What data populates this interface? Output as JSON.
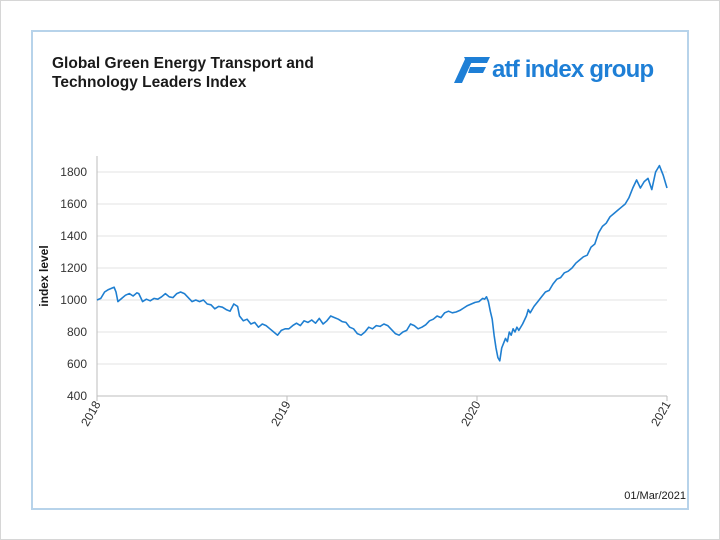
{
  "header": {
    "title_line1": "Global Green Energy Transport and",
    "title_line2": "Technology Leaders Index",
    "logo_text": "atf index group",
    "logo_icon": "atf-logo-icon"
  },
  "footer": {
    "date": "01/Mar/2021"
  },
  "colors": {
    "line": "#1f7fd1",
    "frame": "#b7d3ea",
    "logo": "#1e7fd6"
  },
  "chart_data": {
    "type": "line",
    "title": "Global Green Energy Transport and Technology Leaders Index",
    "xlabel": "",
    "ylabel": "index level",
    "ylim": [
      400,
      1900
    ],
    "xlim": [
      2018.0,
      2021.0
    ],
    "yticks": [
      400,
      600,
      800,
      1000,
      1200,
      1400,
      1600,
      1800
    ],
    "xticks": [
      {
        "value": 2018,
        "label": "2018"
      },
      {
        "value": 2019,
        "label": "2019"
      },
      {
        "value": 2020,
        "label": "2020"
      },
      {
        "value": 2021,
        "label": "2021"
      }
    ],
    "grid": "horizontal",
    "series": [
      {
        "values": [
          [
            2018.0,
            1000
          ],
          [
            2018.02,
            1010
          ],
          [
            2018.04,
            1050
          ],
          [
            2018.06,
            1065
          ],
          [
            2018.08,
            1075
          ],
          [
            2018.09,
            1080
          ],
          [
            2018.1,
            1050
          ],
          [
            2018.11,
            990
          ],
          [
            2018.13,
            1010
          ],
          [
            2018.15,
            1030
          ],
          [
            2018.17,
            1040
          ],
          [
            2018.19,
            1025
          ],
          [
            2018.21,
            1045
          ],
          [
            2018.22,
            1040
          ],
          [
            2018.24,
            990
          ],
          [
            2018.26,
            1005
          ],
          [
            2018.28,
            995
          ],
          [
            2018.3,
            1010
          ],
          [
            2018.32,
            1005
          ],
          [
            2018.34,
            1020
          ],
          [
            2018.36,
            1040
          ],
          [
            2018.38,
            1020
          ],
          [
            2018.4,
            1015
          ],
          [
            2018.42,
            1040
          ],
          [
            2018.44,
            1050
          ],
          [
            2018.46,
            1040
          ],
          [
            2018.48,
            1015
          ],
          [
            2018.5,
            990
          ],
          [
            2018.52,
            1000
          ],
          [
            2018.54,
            990
          ],
          [
            2018.56,
            1000
          ],
          [
            2018.58,
            975
          ],
          [
            2018.6,
            970
          ],
          [
            2018.62,
            945
          ],
          [
            2018.64,
            960
          ],
          [
            2018.66,
            955
          ],
          [
            2018.68,
            940
          ],
          [
            2018.7,
            930
          ],
          [
            2018.72,
            975
          ],
          [
            2018.74,
            960
          ],
          [
            2018.75,
            900
          ],
          [
            2018.77,
            870
          ],
          [
            2018.79,
            880
          ],
          [
            2018.81,
            850
          ],
          [
            2018.83,
            860
          ],
          [
            2018.85,
            830
          ],
          [
            2018.87,
            850
          ],
          [
            2018.89,
            840
          ],
          [
            2018.91,
            820
          ],
          [
            2018.93,
            800
          ],
          [
            2018.95,
            780
          ],
          [
            2018.97,
            810
          ],
          [
            2018.99,
            820
          ],
          [
            2019.01,
            820
          ],
          [
            2019.03,
            840
          ],
          [
            2019.05,
            855
          ],
          [
            2019.07,
            840
          ],
          [
            2019.09,
            870
          ],
          [
            2019.11,
            860
          ],
          [
            2019.13,
            875
          ],
          [
            2019.15,
            855
          ],
          [
            2019.17,
            885
          ],
          [
            2019.19,
            850
          ],
          [
            2019.21,
            870
          ],
          [
            2019.23,
            900
          ],
          [
            2019.25,
            890
          ],
          [
            2019.27,
            880
          ],
          [
            2019.29,
            865
          ],
          [
            2019.31,
            860
          ],
          [
            2019.33,
            830
          ],
          [
            2019.35,
            820
          ],
          [
            2019.37,
            790
          ],
          [
            2019.39,
            780
          ],
          [
            2019.41,
            800
          ],
          [
            2019.43,
            830
          ],
          [
            2019.45,
            820
          ],
          [
            2019.47,
            840
          ],
          [
            2019.49,
            835
          ],
          [
            2019.51,
            850
          ],
          [
            2019.53,
            840
          ],
          [
            2019.55,
            815
          ],
          [
            2019.57,
            790
          ],
          [
            2019.59,
            780
          ],
          [
            2019.61,
            800
          ],
          [
            2019.63,
            810
          ],
          [
            2019.65,
            850
          ],
          [
            2019.67,
            840
          ],
          [
            2019.69,
            820
          ],
          [
            2019.71,
            830
          ],
          [
            2019.73,
            845
          ],
          [
            2019.75,
            870
          ],
          [
            2019.77,
            880
          ],
          [
            2019.79,
            900
          ],
          [
            2019.81,
            890
          ],
          [
            2019.83,
            920
          ],
          [
            2019.85,
            930
          ],
          [
            2019.87,
            920
          ],
          [
            2019.89,
            925
          ],
          [
            2019.91,
            935
          ],
          [
            2019.93,
            950
          ],
          [
            2019.95,
            965
          ],
          [
            2019.97,
            975
          ],
          [
            2019.99,
            985
          ],
          [
            2020.01,
            990
          ],
          [
            2020.02,
            1000
          ],
          [
            2020.03,
            1010
          ],
          [
            2020.04,
            1005
          ],
          [
            2020.05,
            1020
          ],
          [
            2020.06,
            990
          ],
          [
            2020.07,
            930
          ],
          [
            2020.08,
            880
          ],
          [
            2020.09,
            780
          ],
          [
            2020.1,
            700
          ],
          [
            2020.11,
            640
          ],
          [
            2020.12,
            620
          ],
          [
            2020.13,
            700
          ],
          [
            2020.14,
            730
          ],
          [
            2020.15,
            760
          ],
          [
            2020.16,
            740
          ],
          [
            2020.17,
            800
          ],
          [
            2020.18,
            780
          ],
          [
            2020.19,
            820
          ],
          [
            2020.2,
            800
          ],
          [
            2020.21,
            830
          ],
          [
            2020.22,
            810
          ],
          [
            2020.24,
            850
          ],
          [
            2020.26,
            900
          ],
          [
            2020.27,
            940
          ],
          [
            2020.28,
            920
          ],
          [
            2020.3,
            960
          ],
          [
            2020.32,
            990
          ],
          [
            2020.34,
            1020
          ],
          [
            2020.36,
            1050
          ],
          [
            2020.38,
            1060
          ],
          [
            2020.4,
            1100
          ],
          [
            2020.42,
            1130
          ],
          [
            2020.44,
            1140
          ],
          [
            2020.46,
            1170
          ],
          [
            2020.48,
            1180
          ],
          [
            2020.5,
            1200
          ],
          [
            2020.52,
            1230
          ],
          [
            2020.54,
            1250
          ],
          [
            2020.56,
            1270
          ],
          [
            2020.58,
            1280
          ],
          [
            2020.6,
            1330
          ],
          [
            2020.62,
            1350
          ],
          [
            2020.64,
            1420
          ],
          [
            2020.66,
            1460
          ],
          [
            2020.68,
            1480
          ],
          [
            2020.7,
            1520
          ],
          [
            2020.72,
            1540
          ],
          [
            2020.74,
            1560
          ],
          [
            2020.76,
            1580
          ],
          [
            2020.78,
            1600
          ],
          [
            2020.8,
            1640
          ],
          [
            2020.82,
            1700
          ],
          [
            2020.84,
            1750
          ],
          [
            2020.86,
            1700
          ],
          [
            2020.88,
            1740
          ],
          [
            2020.9,
            1760
          ],
          [
            2020.92,
            1690
          ],
          [
            2020.94,
            1800
          ],
          [
            2020.96,
            1840
          ],
          [
            2020.98,
            1780
          ],
          [
            2020.99,
            1740
          ],
          [
            2021.0,
            1700
          ]
        ]
      }
    ]
  }
}
